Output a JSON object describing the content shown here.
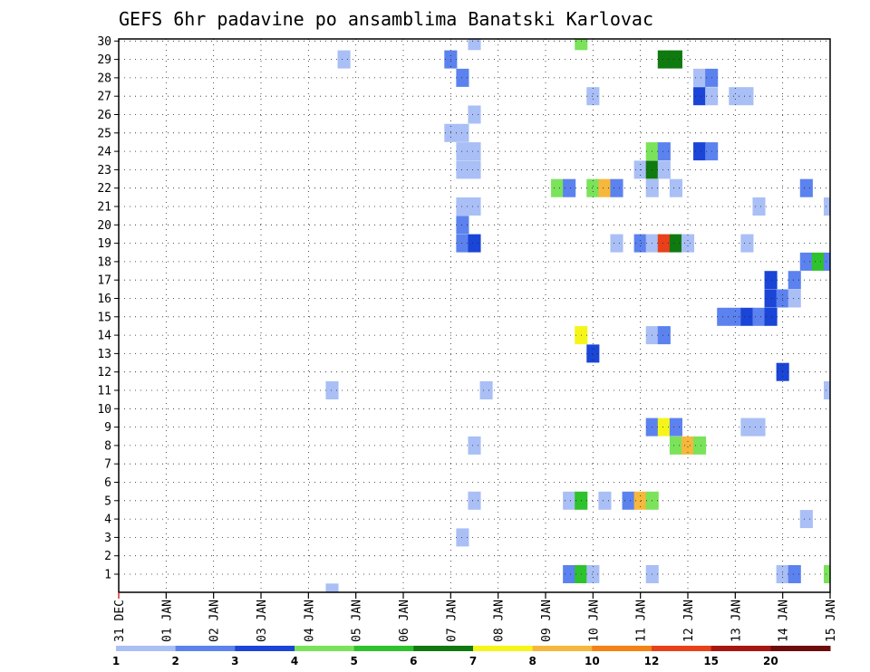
{
  "chart_data": {
    "type": "heatmap",
    "title": "GEFS 6hr padavine po ansamblima Banatski Karlovac",
    "xlabel": "",
    "ylabel": "",
    "x_tick_labels": [
      "31 DEC",
      "01 JAN",
      "02 JAN",
      "03 JAN",
      "04 JAN",
      "05 JAN",
      "06 JAN",
      "07 JAN",
      "08 JAN",
      "09 JAN",
      "10 JAN",
      "11 JAN",
      "12 JAN",
      "13 JAN",
      "14 JAN",
      "15 JAN"
    ],
    "y_tick_labels": [
      "1",
      "2",
      "3",
      "4",
      "5",
      "6",
      "7",
      "8",
      "9",
      "10",
      "11",
      "12",
      "13",
      "14",
      "15",
      "16",
      "17",
      "18",
      "19",
      "20",
      "21",
      "22",
      "23",
      "24",
      "25",
      "26",
      "27",
      "28",
      "29",
      "30"
    ],
    "x_unit": "6-hour steps from 31 DEC 00Z",
    "y_unit": "ensemble member",
    "grid": true,
    "colorbar": {
      "labels": [
        "1",
        "2",
        "3",
        "4",
        "5",
        "6",
        "7",
        "8",
        "10",
        "12",
        "15",
        "20"
      ],
      "colors": [
        "#a9bff5",
        "#5b82ee",
        "#1a45d6",
        "#7ae35a",
        "#2ec22c",
        "#0f7a0f",
        "#f5f51a",
        "#f5b83c",
        "#f58214",
        "#e8401a",
        "#a8170f",
        "#6e0b0b"
      ]
    },
    "cells": [
      {
        "step": 30,
        "member": 30,
        "value": 1
      },
      {
        "step": 39,
        "member": 30,
        "value": 4
      },
      {
        "step": 19,
        "member": 29,
        "value": 1
      },
      {
        "step": 28,
        "member": 29,
        "value": 2
      },
      {
        "step": 46,
        "member": 29,
        "value": 6
      },
      {
        "step": 47,
        "member": 29,
        "value": 6
      },
      {
        "step": 29,
        "member": 28,
        "value": 2
      },
      {
        "step": 49,
        "member": 28,
        "value": 1
      },
      {
        "step": 50,
        "member": 28,
        "value": 2
      },
      {
        "step": 40,
        "member": 27,
        "value": 1
      },
      {
        "step": 49,
        "member": 27,
        "value": 3
      },
      {
        "step": 50,
        "member": 27,
        "value": 1
      },
      {
        "step": 52,
        "member": 27,
        "value": 1
      },
      {
        "step": 53,
        "member": 27,
        "value": 1
      },
      {
        "step": 30,
        "member": 26,
        "value": 1
      },
      {
        "step": 28,
        "member": 25,
        "value": 1
      },
      {
        "step": 29,
        "member": 25,
        "value": 1
      },
      {
        "step": 29,
        "member": 24,
        "value": 1
      },
      {
        "step": 30,
        "member": 24,
        "value": 1
      },
      {
        "step": 45,
        "member": 24,
        "value": 4
      },
      {
        "step": 46,
        "member": 24,
        "value": 2
      },
      {
        "step": 49,
        "member": 24,
        "value": 3
      },
      {
        "step": 50,
        "member": 24,
        "value": 2
      },
      {
        "step": 29,
        "member": 23,
        "value": 1
      },
      {
        "step": 30,
        "member": 23,
        "value": 1
      },
      {
        "step": 44,
        "member": 23,
        "value": 1
      },
      {
        "step": 45,
        "member": 23,
        "value": 6
      },
      {
        "step": 46,
        "member": 23,
        "value": 1
      },
      {
        "step": 37,
        "member": 22,
        "value": 4
      },
      {
        "step": 38,
        "member": 22,
        "value": 2
      },
      {
        "step": 40,
        "member": 22,
        "value": 4
      },
      {
        "step": 41,
        "member": 22,
        "value": 8
      },
      {
        "step": 42,
        "member": 22,
        "value": 2
      },
      {
        "step": 45,
        "member": 22,
        "value": 1
      },
      {
        "step": 47,
        "member": 22,
        "value": 1
      },
      {
        "step": 58,
        "member": 22,
        "value": 2
      },
      {
        "step": 29,
        "member": 21,
        "value": 1
      },
      {
        "step": 30,
        "member": 21,
        "value": 1
      },
      {
        "step": 54,
        "member": 21,
        "value": 1
      },
      {
        "step": 60,
        "member": 21,
        "value": 1
      },
      {
        "step": 29,
        "member": 20,
        "value": 2
      },
      {
        "step": 29,
        "member": 19,
        "value": 2
      },
      {
        "step": 30,
        "member": 19,
        "value": 3
      },
      {
        "step": 42,
        "member": 19,
        "value": 1
      },
      {
        "step": 44,
        "member": 19,
        "value": 2
      },
      {
        "step": 45,
        "member": 19,
        "value": 1
      },
      {
        "step": 46,
        "member": 19,
        "value": 12
      },
      {
        "step": 47,
        "member": 19,
        "value": 6
      },
      {
        "step": 48,
        "member": 19,
        "value": 1
      },
      {
        "step": 53,
        "member": 19,
        "value": 1
      },
      {
        "step": 58,
        "member": 18,
        "value": 2
      },
      {
        "step": 59,
        "member": 18,
        "value": 5
      },
      {
        "step": 60,
        "member": 18,
        "value": 2
      },
      {
        "step": 55,
        "member": 17,
        "value": 3
      },
      {
        "step": 57,
        "member": 17,
        "value": 2
      },
      {
        "step": 55,
        "member": 16,
        "value": 3
      },
      {
        "step": 56,
        "member": 16,
        "value": 2
      },
      {
        "step": 57,
        "member": 16,
        "value": 1
      },
      {
        "step": 51,
        "member": 15,
        "value": 2
      },
      {
        "step": 52,
        "member": 15,
        "value": 2
      },
      {
        "step": 53,
        "member": 15,
        "value": 3
      },
      {
        "step": 54,
        "member": 15,
        "value": 2
      },
      {
        "step": 55,
        "member": 15,
        "value": 3
      },
      {
        "step": 39,
        "member": 14,
        "value": 7
      },
      {
        "step": 45,
        "member": 14,
        "value": 1
      },
      {
        "step": 46,
        "member": 14,
        "value": 2
      },
      {
        "step": 40,
        "member": 13,
        "value": 3
      },
      {
        "step": 56,
        "member": 12,
        "value": 3
      },
      {
        "step": 18,
        "member": 11,
        "value": 1
      },
      {
        "step": 31,
        "member": 11,
        "value": 1
      },
      {
        "step": 60,
        "member": 11,
        "value": 1
      },
      {
        "step": 45,
        "member": 9,
        "value": 2
      },
      {
        "step": 46,
        "member": 9,
        "value": 7
      },
      {
        "step": 47,
        "member": 9,
        "value": 2
      },
      {
        "step": 53,
        "member": 9,
        "value": 1
      },
      {
        "step": 54,
        "member": 9,
        "value": 1
      },
      {
        "step": 30,
        "member": 8,
        "value": 1
      },
      {
        "step": 47,
        "member": 8,
        "value": 4
      },
      {
        "step": 48,
        "member": 8,
        "value": 8
      },
      {
        "step": 49,
        "member": 8,
        "value": 4
      },
      {
        "step": 30,
        "member": 5,
        "value": 1
      },
      {
        "step": 38,
        "member": 5,
        "value": 1
      },
      {
        "step": 39,
        "member": 5,
        "value": 5
      },
      {
        "step": 41,
        "member": 5,
        "value": 1
      },
      {
        "step": 43,
        "member": 5,
        "value": 2
      },
      {
        "step": 44,
        "member": 5,
        "value": 8
      },
      {
        "step": 45,
        "member": 5,
        "value": 4
      },
      {
        "step": 58,
        "member": 4,
        "value": 1
      },
      {
        "step": 29,
        "member": 3,
        "value": 1
      },
      {
        "step": 38,
        "member": 1,
        "value": 2
      },
      {
        "step": 39,
        "member": 1,
        "value": 5
      },
      {
        "step": 40,
        "member": 1,
        "value": 1
      },
      {
        "step": 45,
        "member": 1,
        "value": 1
      },
      {
        "step": 56,
        "member": 1,
        "value": 1
      },
      {
        "step": 57,
        "member": 1,
        "value": 2
      },
      {
        "step": 60,
        "member": 1,
        "value": 4
      },
      {
        "step": 18,
        "member": 0,
        "value": 1
      }
    ]
  }
}
